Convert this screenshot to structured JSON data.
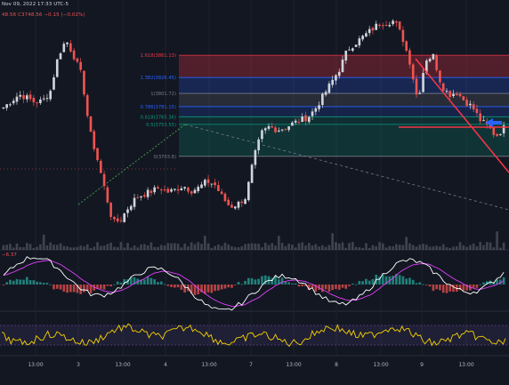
{
  "header": {
    "datetime": "Nov 09, 2022 17:33 UTC-5",
    "ohlc_text": "48.56  C3748.56  −0.15 (−0.02%)"
  },
  "macd_header": {
    "value": "−6.37"
  },
  "colors": {
    "background": "#131722",
    "candle_up": "#d1d4dc",
    "candle_down": "#ef5350",
    "trendline": "#f23645",
    "arrow": "#2962ff",
    "rsi_line": "#f5d300",
    "rsi_band": "#7e57c2",
    "macd_line": "#ffffff",
    "signal_line": "#e040fb"
  },
  "icons": {
    "arrow": "left-arrow-icon"
  },
  "chart_data": [
    {
      "type": "candlestick",
      "name": "price",
      "x_axis_labels": [
        "13:00",
        "3",
        "13:00",
        "4",
        "13:00",
        "7",
        "13:00",
        "8",
        "13:00",
        "9",
        "13:00"
      ],
      "close_path": [
        3780,
        3790,
        3800,
        3795,
        3788,
        3790,
        3805,
        3860,
        3885,
        3860,
        3830,
        3745,
        3700,
        3650,
        3600,
        3605,
        3625,
        3640,
        3645,
        3650,
        3655,
        3648,
        3652,
        3658,
        3650,
        3655,
        3665,
        3660,
        3640,
        3625,
        3630,
        3640,
        3700,
        3740,
        3750,
        3745,
        3748,
        3755,
        3760,
        3765,
        3780,
        3800,
        3820,
        3840,
        3870,
        3880,
        3890,
        3900,
        3910,
        3912,
        3915,
        3890,
        3850,
        3790,
        3855,
        3860,
        3815,
        3800,
        3803,
        3790,
        3780,
        3760,
        3750,
        3735,
        3748
      ],
      "fib_levels": [
        {
          "label": "1.618(3861.13)",
          "ratio": 1.618,
          "price": 3861.13,
          "color": "#f23645"
        },
        {
          "label": "1.382(3826.45)",
          "ratio": 1.382,
          "price": 3826.45,
          "color": "#2962ff"
        },
        {
          "label": "1(3801.72)",
          "ratio": 1,
          "price": 3801.72,
          "color": "#787b86"
        },
        {
          "label": "0.786(3781.15)",
          "ratio": 0.786,
          "price": 3781.15,
          "color": "#2962ff"
        },
        {
          "label": "0.618(3765.36)",
          "ratio": 0.618,
          "price": 3765.36,
          "color": "#089981"
        },
        {
          "label": "0.5(3753.55)",
          "ratio": 0.5,
          "price": 3753.55,
          "color": "#089981"
        },
        {
          "label": "0(3703.8)",
          "ratio": 0,
          "price": 3703.8,
          "color": "#787b86"
        }
      ],
      "annotations": [
        "descending trendline",
        "horizontal support line",
        "left-pointing arrow",
        "dashed fib trend line"
      ]
    },
    {
      "type": "bar",
      "name": "volume"
    },
    {
      "type": "line",
      "name": "MACD",
      "value": -6.37
    },
    {
      "type": "line",
      "name": "RSI"
    }
  ]
}
